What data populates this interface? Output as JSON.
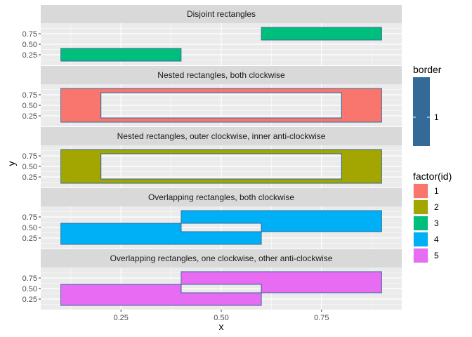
{
  "chart_data": {
    "type": "faceted_polygon",
    "xlabel": "x",
    "ylabel": "y",
    "xlim": [
      0.05,
      0.95
    ],
    "ylim": [
      0.0,
      1.0
    ],
    "x_ticks": [
      0.25,
      0.5,
      0.75
    ],
    "x_tick_labels": [
      "0.25",
      "0.50",
      "0.75"
    ],
    "y_ticks": [
      0.25,
      0.5,
      0.75
    ],
    "y_tick_labels": [
      "0.25",
      "0.50",
      "0.75"
    ],
    "grid": true,
    "colors": {
      "1": "#F8766D",
      "2": "#A3A500",
      "3": "#00BF7D",
      "4": "#00B0F6",
      "5": "#E76BF3",
      "border": "#336A98",
      "panel_bg": "#EBEBEB",
      "strip_bg": "#D9D9D9"
    },
    "panels": [
      {
        "title": "Disjoint rectangles",
        "id": "3",
        "polygons": [
          [
            [
              0.6,
              0.6
            ],
            [
              0.9,
              0.6
            ],
            [
              0.9,
              0.9
            ],
            [
              0.6,
              0.9
            ]
          ],
          [
            [
              0.1,
              0.1
            ],
            [
              0.4,
              0.1
            ],
            [
              0.4,
              0.4
            ],
            [
              0.1,
              0.4
            ]
          ]
        ],
        "holes": []
      },
      {
        "title": "Nested rectangles, both clockwise",
        "id": "1",
        "polygons": [
          [
            [
              0.1,
              0.1
            ],
            [
              0.9,
              0.1
            ],
            [
              0.9,
              0.9
            ],
            [
              0.1,
              0.9
            ]
          ]
        ],
        "holes": [
          [
            [
              0.2,
              0.2
            ],
            [
              0.8,
              0.2
            ],
            [
              0.8,
              0.8
            ],
            [
              0.2,
              0.8
            ]
          ]
        ]
      },
      {
        "title": "Nested rectangles, outer clockwise, inner anti-clockwise",
        "id": "2",
        "polygons": [
          [
            [
              0.1,
              0.1
            ],
            [
              0.9,
              0.1
            ],
            [
              0.9,
              0.9
            ],
            [
              0.1,
              0.9
            ]
          ]
        ],
        "holes": [
          [
            [
              0.2,
              0.2
            ],
            [
              0.8,
              0.2
            ],
            [
              0.8,
              0.8
            ],
            [
              0.2,
              0.8
            ]
          ]
        ]
      },
      {
        "title": "Overlapping rectangles, both clockwise",
        "id": "4",
        "polygons": [
          [
            [
              0.1,
              0.1
            ],
            [
              0.6,
              0.1
            ],
            [
              0.6,
              0.6
            ],
            [
              0.1,
              0.6
            ]
          ],
          [
            [
              0.4,
              0.4
            ],
            [
              0.9,
              0.4
            ],
            [
              0.9,
              0.9
            ],
            [
              0.4,
              0.9
            ]
          ]
        ],
        "holes": [
          [
            [
              0.4,
              0.4
            ],
            [
              0.6,
              0.4
            ],
            [
              0.6,
              0.6
            ],
            [
              0.4,
              0.6
            ]
          ]
        ]
      },
      {
        "title": "Overlapping rectangles, one clockwise, other anti-clockwise",
        "id": "5",
        "polygons": [
          [
            [
              0.1,
              0.1
            ],
            [
              0.6,
              0.1
            ],
            [
              0.6,
              0.6
            ],
            [
              0.1,
              0.6
            ]
          ],
          [
            [
              0.4,
              0.4
            ],
            [
              0.9,
              0.4
            ],
            [
              0.9,
              0.9
            ],
            [
              0.4,
              0.9
            ]
          ]
        ],
        "holes": [
          [
            [
              0.4,
              0.4
            ],
            [
              0.6,
              0.4
            ],
            [
              0.6,
              0.6
            ],
            [
              0.4,
              0.6
            ]
          ]
        ]
      }
    ],
    "legends": [
      {
        "title": "border",
        "type": "colorbar",
        "color": "#336A98",
        "labels": [
          "1"
        ]
      },
      {
        "title": "factor(id)",
        "type": "discrete",
        "items": [
          {
            "label": "1",
            "color": "#F8766D"
          },
          {
            "label": "2",
            "color": "#A3A500"
          },
          {
            "label": "3",
            "color": "#00BF7D"
          },
          {
            "label": "4",
            "color": "#00B0F6"
          },
          {
            "label": "5",
            "color": "#E76BF3"
          }
        ]
      }
    ]
  }
}
